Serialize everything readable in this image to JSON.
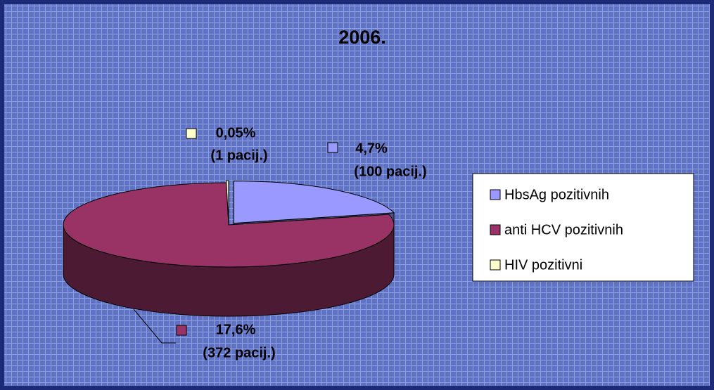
{
  "chart_data": {
    "type": "pie3d",
    "title": "2006.",
    "categories": [
      "HbsAg pozitivnih",
      "anti HCV pozitivnih",
      "HIV pozitivni"
    ],
    "values": [
      4.7,
      17.6,
      0.05
    ],
    "value_labels": [
      "4,7%",
      "17,6%",
      "0,05%"
    ],
    "counts": [
      100,
      372,
      1
    ],
    "count_labels": [
      "(100 pacij.)",
      "(372 pacij.)",
      "(1 pacij.)"
    ],
    "colors": [
      "#9999ff",
      "#993366",
      "#ffffcc"
    ],
    "side_colors": [
      "#4d4d80",
      "#4d1a33",
      "#808066"
    ],
    "legend": "right"
  }
}
